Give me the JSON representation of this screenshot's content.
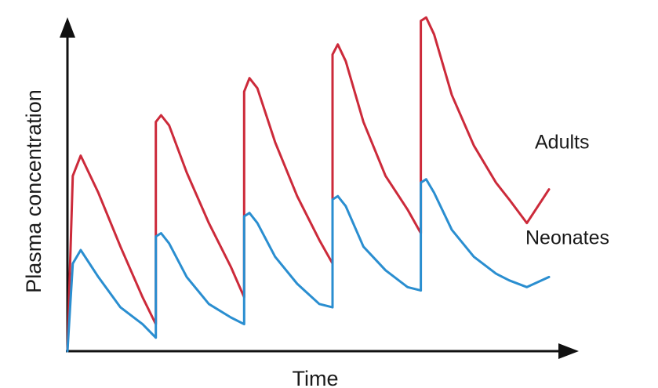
{
  "chart_data": {
    "type": "line",
    "title": "",
    "xlabel": "Time",
    "ylabel": "Plasma concentration",
    "grid": false,
    "legend": "series labels placed at right end of each line",
    "x_unit": "dose intervals",
    "dose_times": [
      0,
      1,
      2,
      3,
      4
    ],
    "xlim": [
      0,
      5.45
    ],
    "ylim": [
      0,
      100
    ],
    "series": [
      {
        "name": "Adults",
        "color": "#cc2a3a",
        "x": [
          0,
          0.06,
          0.15,
          0.35,
          0.6,
          0.85,
          1.0,
          1.0,
          1.06,
          1.15,
          1.35,
          1.6,
          1.85,
          2.0,
          2.0,
          2.06,
          2.15,
          2.35,
          2.6,
          2.85,
          3.0,
          3.0,
          3.06,
          3.15,
          3.35,
          3.6,
          3.85,
          4.0,
          4.0,
          4.06,
          4.15,
          4.35,
          4.6,
          4.85,
          5.0,
          5.2,
          5.45
        ],
        "y": [
          0,
          52,
          58,
          47,
          31,
          16,
          8,
          68,
          70,
          67,
          53,
          38,
          25,
          16,
          77,
          81,
          78,
          62,
          46,
          33,
          26,
          88,
          91,
          86,
          68,
          52,
          42,
          35,
          98,
          99,
          94,
          76,
          61,
          50,
          45,
          38,
          48
        ]
      },
      {
        "name": "Neonates",
        "color": "#2a8ed0",
        "x": [
          0,
          0.06,
          0.15,
          0.35,
          0.6,
          0.85,
          1.0,
          1.0,
          1.06,
          1.15,
          1.35,
          1.6,
          1.85,
          2.0,
          2.0,
          2.06,
          2.15,
          2.35,
          2.6,
          2.85,
          3.0,
          3.0,
          3.06,
          3.15,
          3.35,
          3.6,
          3.85,
          4.0,
          4.0,
          4.06,
          4.15,
          4.35,
          4.6,
          4.85,
          5.0,
          5.2,
          5.45
        ],
        "y": [
          0,
          26,
          30,
          22,
          13,
          8,
          4,
          34,
          35,
          32,
          22,
          14,
          10,
          8,
          40,
          41,
          38,
          28,
          20,
          14,
          13,
          45,
          46,
          43,
          31,
          24,
          19,
          18,
          50,
          51,
          47,
          36,
          28,
          23,
          21,
          19,
          22
        ]
      }
    ]
  }
}
